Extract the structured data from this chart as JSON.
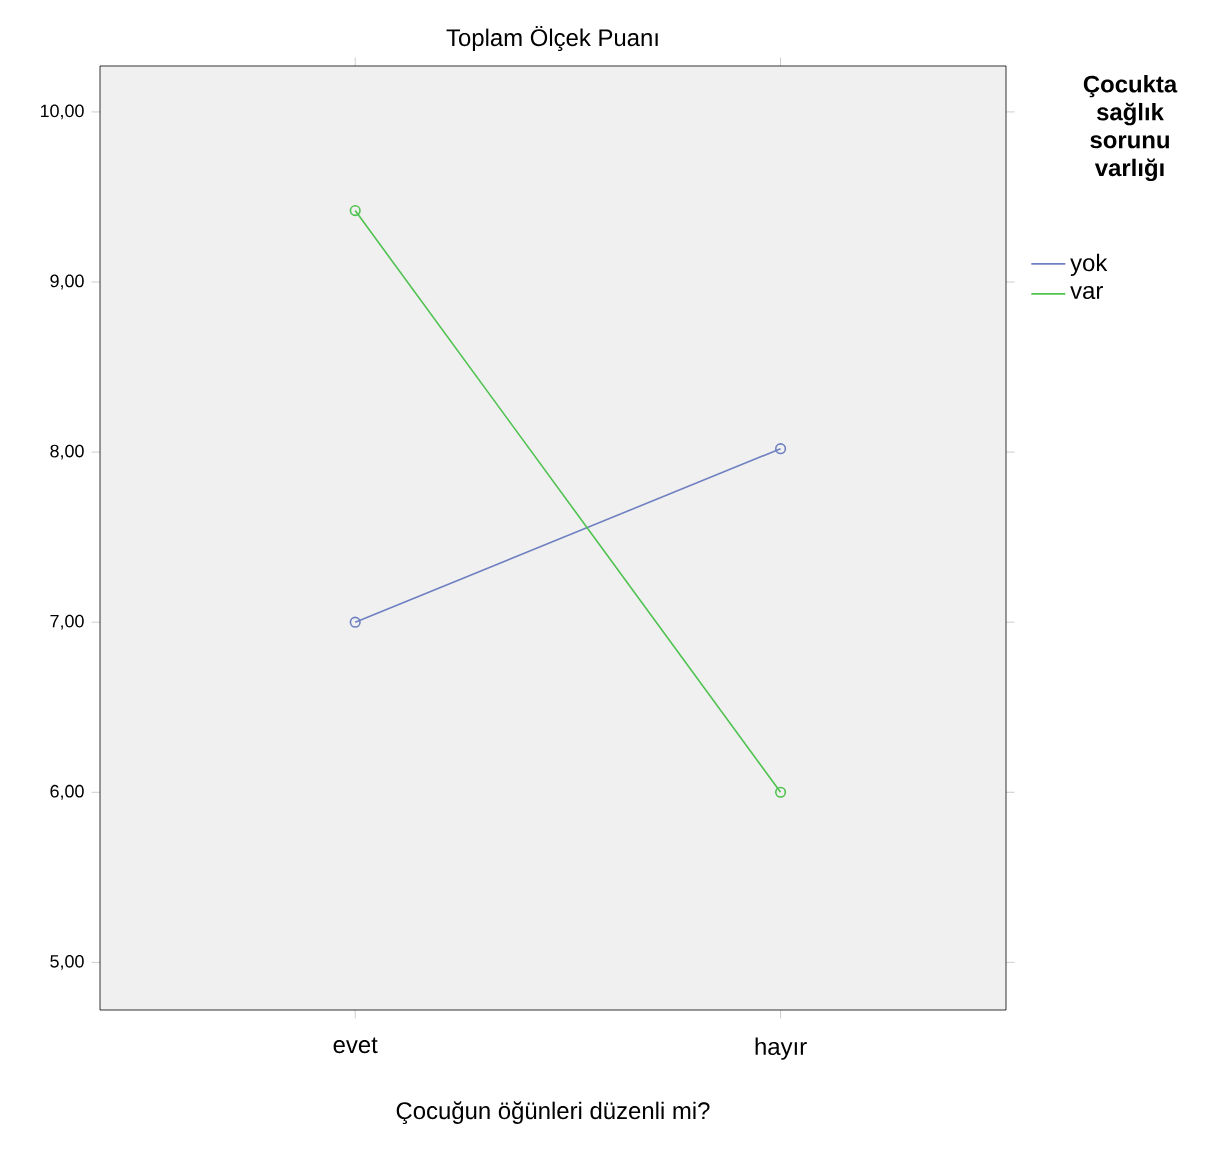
{
  "chart_data": {
    "type": "line",
    "title": "Toplam Ölçek Puanı",
    "xlabel": "Çocuğun öğünleri düzenli mi?",
    "legend_title": "Çocukta sağlık sorunu varlığı",
    "categories": [
      "evet",
      "hayır"
    ],
    "series": [
      {
        "name": "yok",
        "color": "#6f80c0",
        "values": [
          7.0,
          8.02
        ]
      },
      {
        "name": "var",
        "color": "#4ec24e",
        "values": [
          9.42,
          6.0
        ]
      }
    ],
    "ylim": [
      4.72,
      10.27
    ],
    "yticks": [
      {
        "value": 5,
        "label": "5,00"
      },
      {
        "value": 6,
        "label": "6,00"
      },
      {
        "value": 7,
        "label": "7,00"
      },
      {
        "value": 8,
        "label": "8,00"
      },
      {
        "value": 9,
        "label": "9,00"
      },
      {
        "value": 10,
        "label": "10,00"
      }
    ],
    "marker": "circle",
    "legend": "right"
  }
}
